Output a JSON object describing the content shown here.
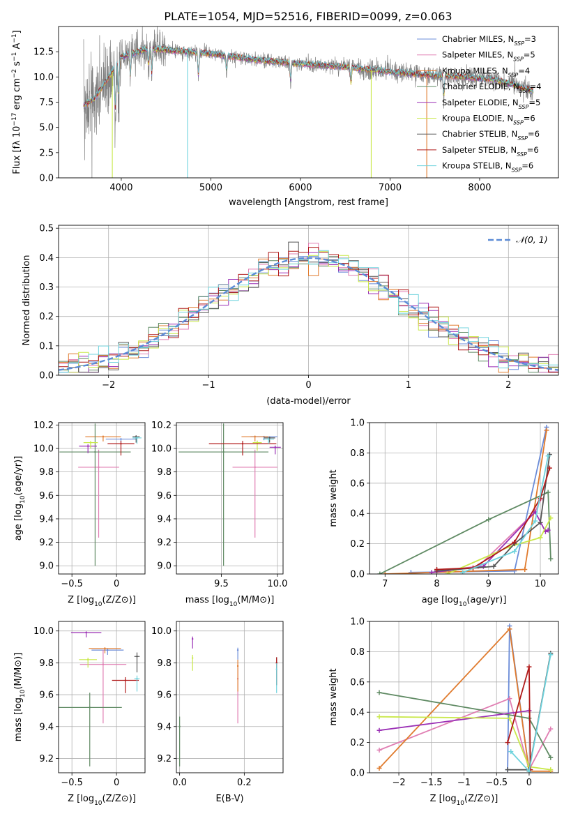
{
  "figure_title": "PLATE=1054, MJD=52516, FIBERID=0099, z=0.063",
  "colors": {
    "c0": "#6b8cd8",
    "c1": "#e07db2",
    "c2": "#e07b2e",
    "c3": "#5f8a63",
    "c4": "#9a2fb5",
    "c5": "#c9e84a",
    "c6": "#555555",
    "c7": "#b01a1a",
    "c8": "#6fd3dd",
    "data": "#808080",
    "normal": "#5b8bd6"
  },
  "legend_labels": [
    "Chabrier MILES, N_SSP=3",
    "Salpeter MILES, N_SSP=5",
    "Kroupa MILES, N_SSP=4",
    "Chabrier ELODIE, N_SSP=4",
    "Salpeter ELODIE, N_SSP=5",
    "Kroupa ELODIE, N_SSP=6",
    "Chabrier STELIB, N_SSP=6",
    "Salpeter STELIB, N_SSP=6",
    "Kroupa STELIB, N_SSP=6"
  ],
  "chart_data": [
    {
      "id": "spectrum",
      "type": "line",
      "xlabel": "wavelength [Angstrom, rest frame]",
      "ylabel": "Flux [f_λ 10^-17 erg cm^-2 s^-1 A^-1]",
      "xlim": [
        3300,
        8880
      ],
      "ylim": [
        0,
        15
      ],
      "xticks": [
        4000,
        5000,
        6000,
        7000,
        8000
      ],
      "yticks": [
        0.0,
        2.5,
        5.0,
        7.5,
        10.0,
        12.5
      ],
      "data_range": [
        3580,
        8600
      ],
      "continuum_x": [
        3580,
        3700,
        3900,
        4000,
        4300,
        4600,
        5000,
        5500,
        6000,
        6500,
        7000,
        7400,
        7800,
        8200,
        8600
      ],
      "continuum_y": [
        7.2,
        7.8,
        10.5,
        12.0,
        12.8,
        12.6,
        12.3,
        11.7,
        11.3,
        11.0,
        10.5,
        10.2,
        10.0,
        9.7,
        8.6
      ],
      "grid": false
    },
    {
      "id": "residuals",
      "type": "line",
      "xlabel": "(data-model)/error",
      "ylabel": "Normed distribution",
      "xlim": [
        -2.5,
        2.5
      ],
      "ylim": [
        0,
        0.51
      ],
      "xticks": [
        -2,
        -1,
        0,
        1,
        2
      ],
      "yticks": [
        0.0,
        0.1,
        0.2,
        0.3,
        0.4,
        0.5
      ],
      "legend": "$\\mathcal{N}(0,1)$",
      "legend_position": "top-right",
      "grid": true
    },
    {
      "id": "age_vs_Z",
      "type": "scatter",
      "xlabel": "Z [log10(Z/Z⊙)]",
      "ylabel": "age [log10(age/yr)]",
      "xlim": [
        -0.65,
        0.32
      ],
      "ylim": [
        8.93,
        10.22
      ],
      "xticks": [
        -0.5,
        0.0
      ],
      "yticks": [
        9.0,
        9.2,
        9.4,
        9.6,
        9.8,
        10.0,
        10.2
      ],
      "points": [
        {
          "c": 0,
          "x": 0.05,
          "y": 10.08,
          "xe": 0.17,
          "ye": 0.03
        },
        {
          "c": 1,
          "x": -0.2,
          "y": 9.84,
          "xe": 0.23,
          "ye": 0.6
        },
        {
          "c": 2,
          "x": -0.15,
          "y": 10.1,
          "xe": 0.2,
          "ye": 0.04
        },
        {
          "c": 3,
          "x": -0.24,
          "y": 9.97,
          "xe": 0.4,
          "ye": 0.97
        },
        {
          "c": 4,
          "x": -0.32,
          "y": 10.02,
          "xe": 0.1,
          "ye": 0.06
        },
        {
          "c": 5,
          "x": -0.29,
          "y": 10.05,
          "xe": 0.08,
          "ye": 0.05
        },
        {
          "c": 6,
          "x": 0.22,
          "y": 10.1,
          "xe": 0.04,
          "ye": 0.05
        },
        {
          "c": 7,
          "x": 0.05,
          "y": 10.04,
          "xe": 0.15,
          "ye": 0.1
        },
        {
          "c": 8,
          "x": 0.23,
          "y": 10.09,
          "xe": 0.05,
          "ye": 0.05
        }
      ]
    },
    {
      "id": "age_vs_mass",
      "type": "scatter",
      "xlabel": "mass [log10(M/M⊙)]",
      "ylabel": "",
      "xlim": [
        9.1,
        10.05
      ],
      "ylim": [
        8.93,
        10.22
      ],
      "xticks": [
        9.5,
        10.0
      ],
      "yticks": [
        9.0,
        9.2,
        9.4,
        9.6,
        9.8,
        10.0,
        10.2
      ],
      "points": [
        {
          "c": 0,
          "x": 9.88,
          "y": 10.1,
          "xe": 0.12,
          "ye": 0.03
        },
        {
          "c": 1,
          "x": 9.8,
          "y": 9.84,
          "xe": 0.2,
          "ye": 0.6
        },
        {
          "c": 2,
          "x": 9.8,
          "y": 10.1,
          "xe": 0.12,
          "ye": 0.04
        },
        {
          "c": 3,
          "x": 9.52,
          "y": 9.97,
          "xe": 0.4,
          "ye": 0.97
        },
        {
          "c": 4,
          "x": 9.98,
          "y": 10.01,
          "xe": 0.05,
          "ye": 0.06
        },
        {
          "c": 5,
          "x": 9.82,
          "y": 10.05,
          "xe": 0.04,
          "ye": 0.07
        },
        {
          "c": 6,
          "x": 9.93,
          "y": 10.09,
          "xe": 0.05,
          "ye": 0.04
        },
        {
          "c": 7,
          "x": 9.69,
          "y": 10.04,
          "xe": 0.3,
          "ye": 0.1
        },
        {
          "c": 8,
          "x": 9.92,
          "y": 10.08,
          "xe": 0.05,
          "ye": 0.04
        }
      ]
    },
    {
      "id": "weight_vs_age",
      "type": "line",
      "xlabel": "age [log10(age/yr)]",
      "ylabel": "mass weight",
      "xlim": [
        6.7,
        10.35
      ],
      "ylim": [
        0,
        1.0
      ],
      "xticks": [
        7,
        8,
        9,
        10
      ],
      "yticks": [
        0.0,
        0.2,
        0.4,
        0.6,
        0.8,
        1.0
      ],
      "grid": true,
      "series": [
        {
          "c": 0,
          "x": [
            7.5,
            9.5,
            10.12
          ],
          "y": [
            0.01,
            0.02,
            0.97
          ]
        },
        {
          "c": 1,
          "x": [
            8.0,
            8.8,
            9.9,
            10.0
          ],
          "y": [
            0.02,
            0.05,
            0.41,
            0.49
          ]
        },
        {
          "c": 2,
          "x": [
            7.0,
            9.7,
            10.12
          ],
          "y": [
            0.0,
            0.03,
            0.95
          ]
        },
        {
          "c": 3,
          "x": [
            6.9,
            9.0,
            10.15,
            10.2
          ],
          "y": [
            0.0,
            0.36,
            0.54,
            0.1
          ]
        },
        {
          "c": 4,
          "x": [
            7.9,
            8.9,
            9.9,
            10.1,
            10.15
          ],
          "y": [
            0.01,
            0.05,
            0.41,
            0.28,
            0.29
          ]
        },
        {
          "c": 5,
          "x": [
            8.2,
            9.4,
            10.0,
            10.2
          ],
          "y": [
            0.0,
            0.18,
            0.24,
            0.37
          ]
        },
        {
          "c": 6,
          "x": [
            8.0,
            9.1,
            9.5,
            10.0,
            10.18
          ],
          "y": [
            0.02,
            0.05,
            0.2,
            0.34,
            0.79
          ]
        },
        {
          "c": 7,
          "x": [
            8.0,
            8.7,
            9.5,
            10.0,
            10.18
          ],
          "y": [
            0.03,
            0.04,
            0.21,
            0.5,
            0.7
          ]
        },
        {
          "c": 8,
          "x": [
            8.5,
            9.5,
            9.9,
            10.15
          ],
          "y": [
            0.01,
            0.15,
            0.35,
            0.78
          ]
        }
      ]
    },
    {
      "id": "mass_vs_Z",
      "type": "scatter",
      "xlabel": "Z [log10(Z/Z⊙)]",
      "ylabel": "mass [log10(M/M⊙)]",
      "xlim": [
        -0.65,
        0.32
      ],
      "ylim": [
        9.11,
        10.06
      ],
      "xticks": [
        -0.5,
        0.0
      ],
      "yticks": [
        9.2,
        9.4,
        9.6,
        9.8,
        10.0
      ],
      "points": [
        {
          "c": 0,
          "x": -0.1,
          "y": 9.88,
          "xe": 0.18,
          "ye": 0.03
        },
        {
          "c": 1,
          "x": -0.15,
          "y": 9.79,
          "xe": 0.26,
          "ye": 0.37
        },
        {
          "c": 2,
          "x": -0.13,
          "y": 9.89,
          "xe": 0.18,
          "ye": 0.03
        },
        {
          "c": 3,
          "x": -0.3,
          "y": 9.52,
          "xe": 0.36,
          "ye": 0.37
        },
        {
          "c": 4,
          "x": -0.34,
          "y": 9.99,
          "xe": 0.17,
          "ye": 0.03
        },
        {
          "c": 5,
          "x": -0.32,
          "y": 9.82,
          "xe": 0.1,
          "ye": 0.05
        },
        {
          "c": 6,
          "x": 0.23,
          "y": 9.84,
          "xe": 0.03,
          "ye": 0.1
        },
        {
          "c": 7,
          "x": 0.1,
          "y": 9.69,
          "xe": 0.15,
          "ye": 0.08
        },
        {
          "c": 8,
          "x": 0.23,
          "y": 9.7,
          "xe": 0.03,
          "ye": 0.08
        }
      ]
    },
    {
      "id": "mass_vs_ebv",
      "type": "scatter",
      "xlabel": "E(B-V)",
      "ylabel": "",
      "xlim": [
        -0.01,
        0.32
      ],
      "ylim": [
        9.11,
        10.06
      ],
      "xticks": [
        0.0,
        0.2
      ],
      "yticks": [
        9.2,
        9.4,
        9.6,
        9.8,
        10.0
      ],
      "points": [
        {
          "c": 0,
          "x": 0.18,
          "y": 9.88,
          "xe": 0,
          "ye": 0.06
        },
        {
          "c": 1,
          "x": 0.18,
          "y": 9.7,
          "xe": 0,
          "ye": 0.28
        },
        {
          "c": 2,
          "x": 0.18,
          "y": 9.78,
          "xe": 0,
          "ye": 0.16
        },
        {
          "c": 3,
          "x": 0.0,
          "y": 9.4,
          "xe": 0,
          "ye": 0.25
        },
        {
          "c": 4,
          "x": 0.04,
          "y": 9.95,
          "xe": 0,
          "ye": 0.06
        },
        {
          "c": 5,
          "x": 0.04,
          "y": 9.83,
          "xe": 0,
          "ye": 0.08
        },
        {
          "c": 6,
          "x": 0.3,
          "y": 9.8,
          "xe": 0,
          "ye": 0.14
        },
        {
          "c": 7,
          "x": 0.3,
          "y": 9.8,
          "xe": 0,
          "ye": 0.14
        },
        {
          "c": 8,
          "x": 0.3,
          "y": 9.76,
          "xe": 0,
          "ye": 0.15
        }
      ]
    },
    {
      "id": "weight_vs_Z",
      "type": "line",
      "xlabel": "Z [log10(Z/Z⊙)]",
      "ylabel": "mass weight",
      "xlim": [
        -2.45,
        0.45
      ],
      "ylim": [
        0,
        1.0
      ],
      "xticks": [
        -2.0,
        -1.5,
        -1.0,
        -0.5,
        0.0
      ],
      "yticks": [
        0.0,
        0.2,
        0.4,
        0.6,
        0.8,
        1.0
      ],
      "grid": true,
      "series": [
        {
          "c": 0,
          "x": [
            -0.33,
            -0.3,
            0.0
          ],
          "y": [
            0.02,
            0.97,
            0.01
          ]
        },
        {
          "c": 1,
          "x": [
            -2.3,
            -0.3,
            0.0,
            0.33
          ],
          "y": [
            0.15,
            0.49,
            0.02,
            0.29
          ]
        },
        {
          "c": 2,
          "x": [
            -2.3,
            -0.3,
            0.0,
            0.33
          ],
          "y": [
            0.03,
            0.95,
            0.01,
            0.01
          ]
        },
        {
          "c": 3,
          "x": [
            -2.3,
            0.0,
            0.33
          ],
          "y": [
            0.53,
            0.36,
            0.1
          ]
        },
        {
          "c": 4,
          "x": [
            -2.3,
            0.0
          ],
          "y": [
            0.28,
            0.41
          ]
        },
        {
          "c": 5,
          "x": [
            -2.3,
            -0.3,
            0.0,
            0.33
          ],
          "y": [
            0.37,
            0.36,
            0.04,
            0.02
          ]
        },
        {
          "c": 6,
          "x": [
            -0.33,
            0.0,
            0.33
          ],
          "y": [
            0.02,
            0.02,
            0.79
          ]
        },
        {
          "c": 7,
          "x": [
            -0.33,
            0.0,
            0.02
          ],
          "y": [
            0.2,
            0.7,
            0.02
          ]
        },
        {
          "c": 8,
          "x": [
            -0.28,
            0.0,
            0.33
          ],
          "y": [
            0.14,
            0.01,
            0.78
          ]
        }
      ]
    }
  ]
}
